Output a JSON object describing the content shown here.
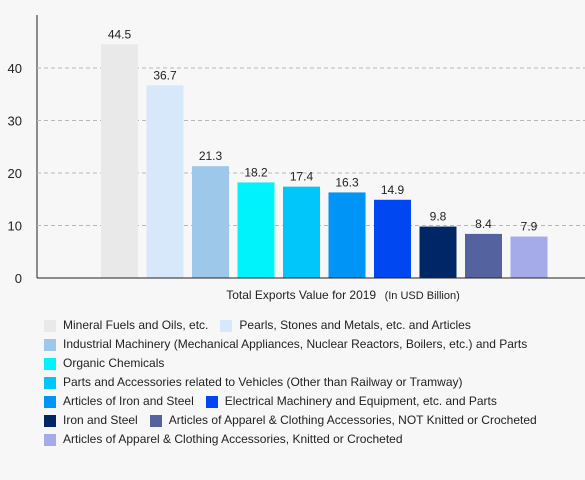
{
  "chart_data": {
    "type": "bar",
    "title": "",
    "xlabel": "Total Exports Value for 2019",
    "xlabel_unit": "(In USD Billion)",
    "ylabel": "",
    "ylim": [
      0,
      50
    ],
    "yticks": [
      0,
      10,
      20,
      30,
      40
    ],
    "grid": true,
    "legend_position": "bottom",
    "series": [
      {
        "name": "Mineral Fuels and Oils, etc.",
        "value": 44.5,
        "label": "44.5",
        "color": "#e9e9e9"
      },
      {
        "name": "Pearls, Stones and Metals, etc. and Articles",
        "value": 36.7,
        "label": "36.7",
        "color": "#d6e8fa"
      },
      {
        "name": "Industrial Machinery (Mechanical Appliances, Nuclear Reactors, Boilers, etc.) and Parts",
        "value": 21.3,
        "label": "21.3",
        "color": "#9dc8ea"
      },
      {
        "name": "Organic Chemicals",
        "value": 18.2,
        "label": "18.2",
        "color": "#00f2fb"
      },
      {
        "name": "Parts and Accessories related to Vehicles (Other than Railway or Tramway)",
        "value": 17.4,
        "label": "17.4",
        "color": "#00c6fa"
      },
      {
        "name": "Articles of Iron and Steel",
        "value": 16.3,
        "label": "16.3",
        "color": "#0094f6"
      },
      {
        "name": "Electrical Machinery and Equipment, etc. and Parts",
        "value": 14.9,
        "label": "14.9",
        "color": "#0047f2"
      },
      {
        "name": "Iron and Steel",
        "value": 9.8,
        "label": "9.8",
        "color": "#002765"
      },
      {
        "name": "Articles of Apparel & Clothing Accessories, NOT Knitted or Crocheted",
        "value": 8.4,
        "label": "8.4",
        "color": "#5562a0"
      },
      {
        "name": "Articles of Apparel & Clothing Accessories, Knitted or Crocheted",
        "value": 7.9,
        "label": "7.9",
        "color": "#a5aae8"
      }
    ]
  }
}
